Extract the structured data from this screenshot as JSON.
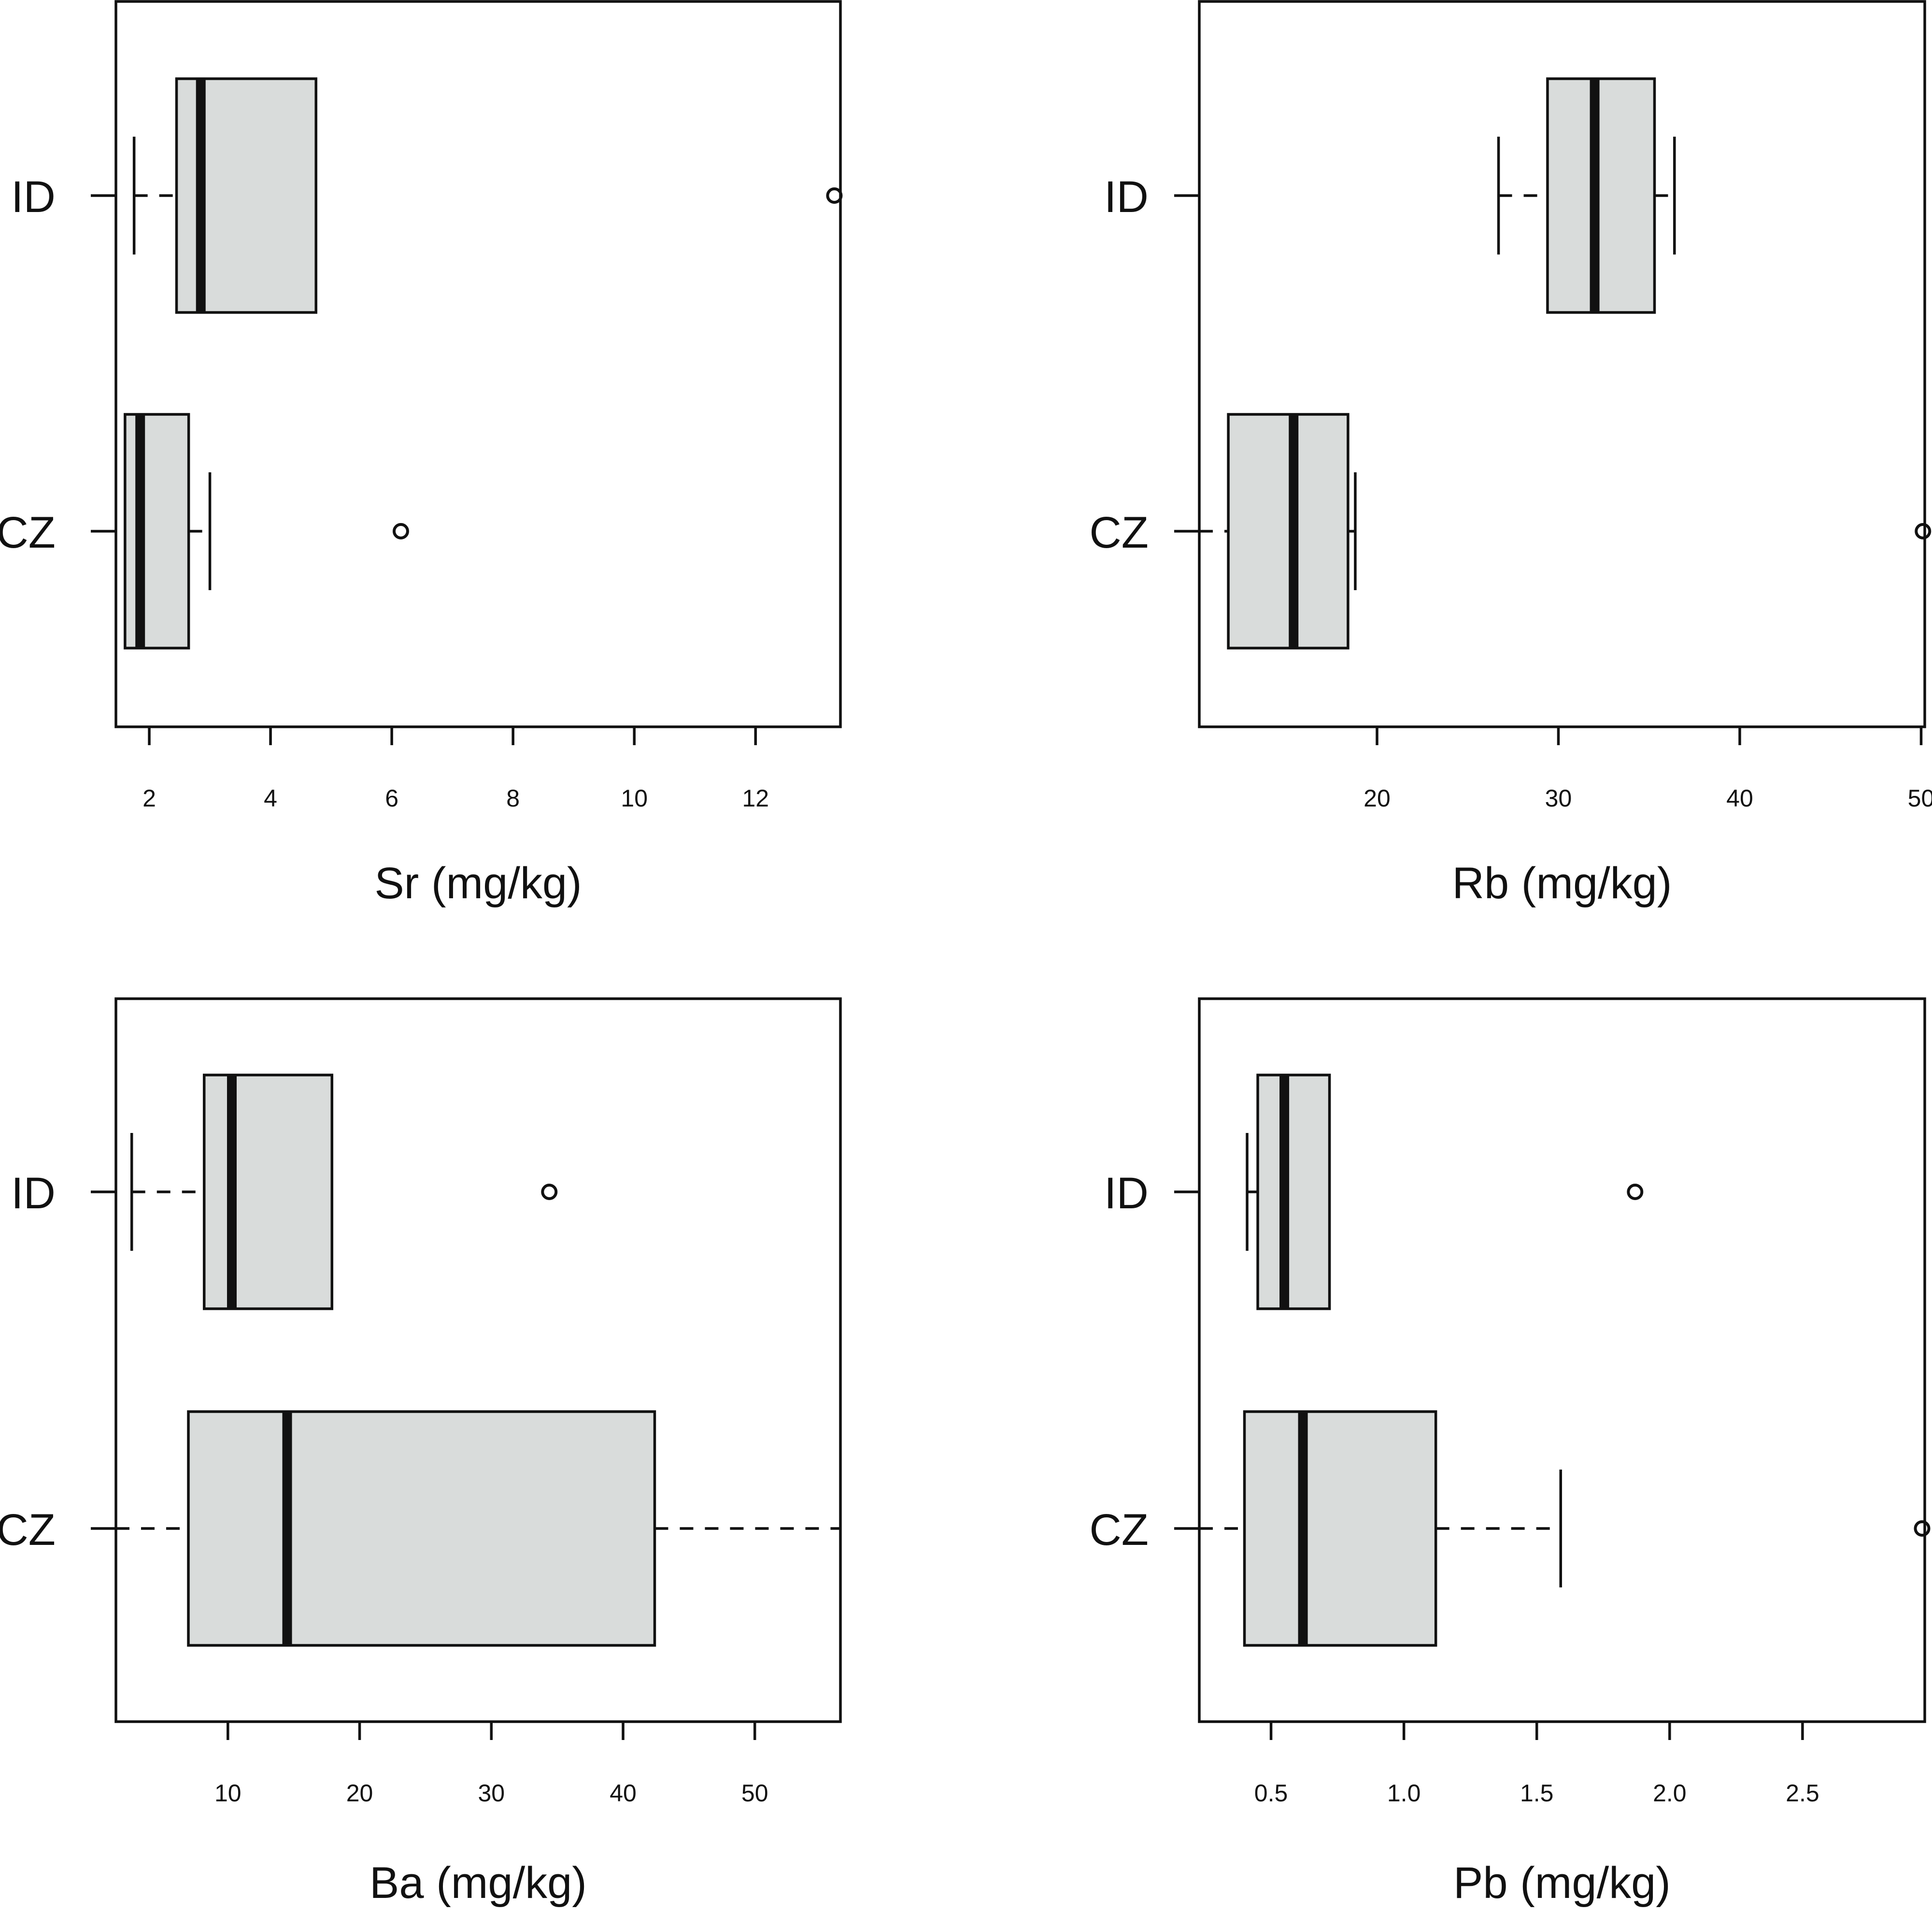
{
  "colors": {
    "box_fill": "#d9dcdb",
    "ink": "#111111",
    "background": "#ffffff"
  },
  "chart_data": [
    {
      "type": "boxplot",
      "orientation": "horizontal",
      "xlabel": "Sr (mg/kg)",
      "xlim": [
        1.45,
        13.4
      ],
      "xticks": [
        2,
        4,
        6,
        8,
        10,
        12
      ],
      "xtick_labels": [
        "2",
        "4",
        "6",
        "8",
        "10",
        "12"
      ],
      "groups": [
        {
          "name": "ID",
          "whisker_low": 1.75,
          "q1": 2.45,
          "median": 2.85,
          "q3": 4.75,
          "whisker_high": 4.75,
          "outliers": [
            13.3
          ]
        },
        {
          "name": "CZ",
          "whisker_low": 1.6,
          "q1": 1.6,
          "median": 1.85,
          "q3": 2.65,
          "whisker_high": 3.0,
          "outliers": [
            6.15
          ]
        }
      ]
    },
    {
      "type": "boxplot",
      "orientation": "horizontal",
      "xlabel": "Rb (mg/kg)",
      "xlim": [
        10.2,
        50.2
      ],
      "xticks": [
        20,
        30,
        40,
        50
      ],
      "xtick_labels": [
        "20",
        "30",
        "40",
        "50"
      ],
      "groups": [
        {
          "name": "ID",
          "whisker_low": 26.7,
          "q1": 29.4,
          "median": 32.0,
          "q3": 35.3,
          "whisker_high": 36.4,
          "outliers": []
        },
        {
          "name": "CZ",
          "whisker_low": 10.2,
          "q1": 11.8,
          "median": 15.4,
          "q3": 18.4,
          "whisker_high": 18.8,
          "outliers": [
            50.1
          ]
        }
      ]
    },
    {
      "type": "boxplot",
      "orientation": "horizontal",
      "xlabel": "Ba (mg/kg)",
      "xlim": [
        1.5,
        56.5
      ],
      "xticks": [
        10,
        20,
        30,
        40,
        50
      ],
      "xtick_labels": [
        "10",
        "20",
        "30",
        "40",
        "50"
      ],
      "groups": [
        {
          "name": "ID",
          "whisker_low": 2.7,
          "q1": 8.2,
          "median": 10.3,
          "q3": 17.9,
          "whisker_high": 17.9,
          "outliers": [
            34.4
          ]
        },
        {
          "name": "CZ",
          "whisker_low": 1.5,
          "q1": 7.0,
          "median": 14.5,
          "q3": 42.4,
          "whisker_high": 56.5,
          "outliers": []
        }
      ]
    },
    {
      "type": "boxplot",
      "orientation": "horizontal",
      "xlabel": "Pb (mg/kg)",
      "xlim": [
        0.23,
        2.96
      ],
      "xticks": [
        0.5,
        1.0,
        1.5,
        2.0,
        2.5
      ],
      "xtick_labels": [
        "0.5",
        "1.0",
        "1.5",
        "2.0",
        "2.5"
      ],
      "groups": [
        {
          "name": "ID",
          "whisker_low": 0.41,
          "q1": 0.45,
          "median": 0.55,
          "q3": 0.72,
          "whisker_high": 0.72,
          "outliers": [
            1.87
          ]
        },
        {
          "name": "CZ",
          "whisker_low": 0.23,
          "q1": 0.4,
          "median": 0.62,
          "q3": 1.12,
          "whisker_high": 1.59,
          "outliers": [
            2.95
          ]
        }
      ]
    }
  ]
}
